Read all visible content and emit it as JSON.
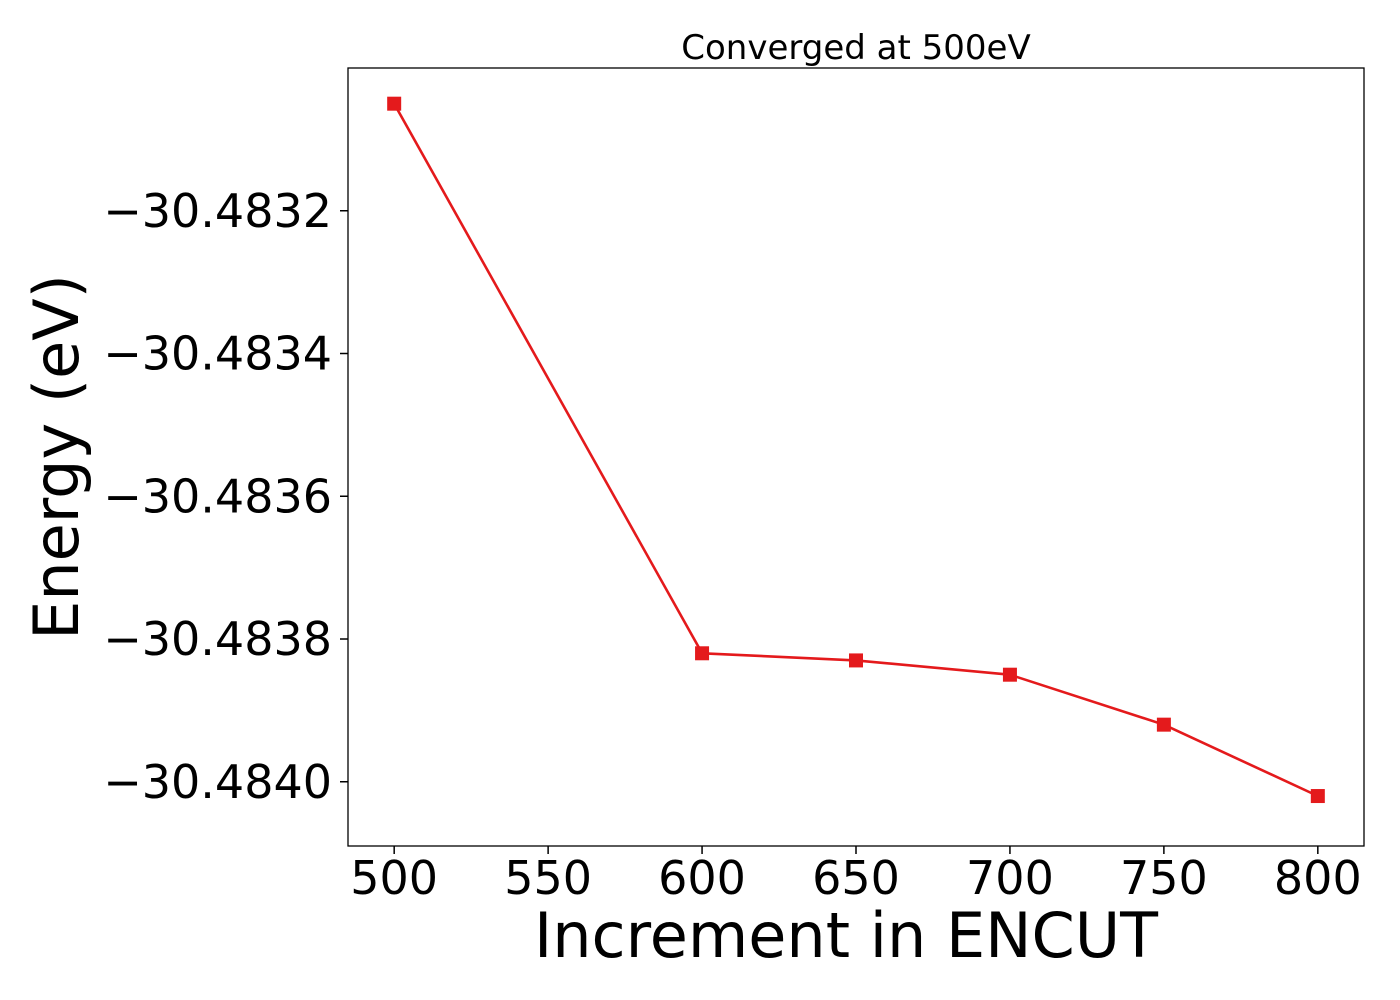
{
  "chart_data": {
    "type": "line",
    "title": "Converged at 500eV",
    "xlabel": "Increment in ENCUT",
    "ylabel": "Energy (eV)",
    "x": [
      500,
      600,
      650,
      700,
      750,
      800
    ],
    "series": [
      {
        "values": [
          -30.48305,
          -30.48382,
          -30.48383,
          -30.48385,
          -30.48392,
          -30.48402
        ],
        "color": "#e41a1c",
        "marker": "square"
      }
    ],
    "xlim": [
      485,
      815
    ],
    "ylim": [
      -30.48409,
      -30.483
    ],
    "xticks": [
      500,
      550,
      600,
      650,
      700,
      750,
      800
    ],
    "xtick_labels": [
      "500",
      "550",
      "600",
      "650",
      "700",
      "750",
      "800"
    ],
    "yticks": [
      -30.4832,
      -30.4834,
      -30.4836,
      -30.4838,
      -30.484
    ],
    "ytick_labels": [
      "−30.4832",
      "−30.4834",
      "−30.4836",
      "−30.4838",
      "−30.4840"
    ],
    "grid": false,
    "legend": "none"
  }
}
